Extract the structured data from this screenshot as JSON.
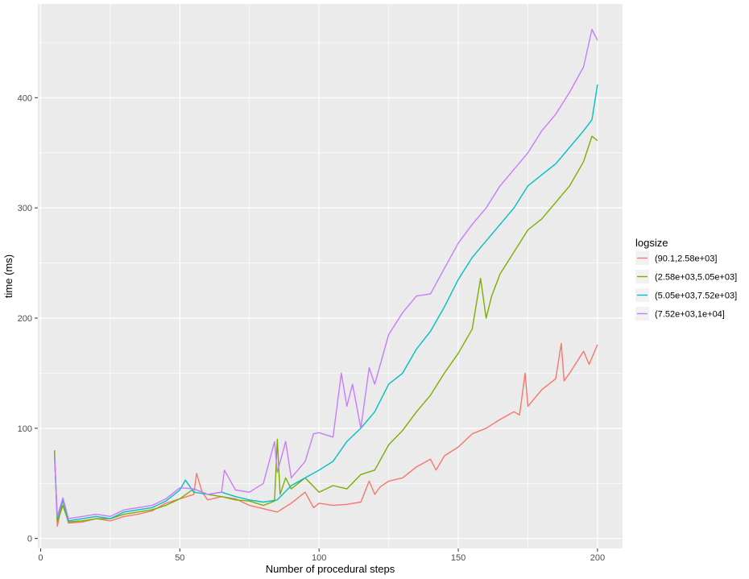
{
  "chart_data": {
    "type": "line",
    "xlabel": "Number of procedural steps",
    "ylabel": "time (ms)",
    "xlim": [
      -1,
      209
    ],
    "ylim": [
      -9,
      485
    ],
    "x_ticks": [
      0,
      50,
      100,
      150,
      200
    ],
    "x_tick_labels": [
      "0",
      "50",
      "100",
      "150",
      "200"
    ],
    "y_ticks": [
      0,
      100,
      200,
      300,
      400
    ],
    "y_tick_labels": [
      "0",
      "100",
      "200",
      "300",
      "400"
    ],
    "grid": true,
    "legend": {
      "title": "logsize",
      "position": "right"
    },
    "series": [
      {
        "name": "(90.1,2.58e+03]",
        "color": "#F8766D",
        "x": [
          5,
          6,
          8,
          10,
          15,
          20,
          25,
          30,
          35,
          40,
          45,
          50,
          55,
          56,
          58,
          60,
          65,
          70,
          75,
          80,
          85,
          90,
          95,
          98,
          100,
          105,
          110,
          115,
          118,
          120,
          122,
          125,
          130,
          135,
          140,
          142,
          145,
          150,
          155,
          160,
          165,
          170,
          172,
          174,
          175,
          180,
          185,
          187,
          188,
          190,
          195,
          197,
          200
        ],
        "y": [
          78,
          11,
          35,
          14,
          15,
          18,
          16,
          20,
          22,
          25,
          32,
          36,
          40,
          59,
          42,
          35,
          38,
          36,
          30,
          27,
          24,
          32,
          42,
          28,
          32,
          30,
          31,
          33,
          52,
          40,
          47,
          52,
          55,
          65,
          72,
          62,
          75,
          83,
          95,
          100,
          108,
          115,
          112,
          150,
          120,
          135,
          145,
          177,
          143,
          150,
          170,
          158,
          176
        ]
      },
      {
        "name": "(2.58e+03,5.05e+03]",
        "color": "#7CAE00",
        "x": [
          5,
          6,
          8,
          10,
          15,
          20,
          25,
          30,
          35,
          40,
          45,
          50,
          55,
          60,
          65,
          70,
          75,
          80,
          84,
          85,
          86,
          88,
          90,
          95,
          100,
          105,
          110,
          115,
          120,
          125,
          130,
          135,
          140,
          145,
          150,
          155,
          158,
          160,
          162,
          165,
          170,
          175,
          180,
          185,
          190,
          195,
          198,
          200
        ],
        "y": [
          80,
          15,
          30,
          15,
          16,
          18,
          18,
          22,
          24,
          26,
          30,
          36,
          45,
          40,
          38,
          35,
          34,
          30,
          34,
          90,
          40,
          55,
          45,
          55,
          42,
          48,
          45,
          58,
          62,
          85,
          98,
          115,
          130,
          150,
          168,
          190,
          236,
          200,
          220,
          240,
          260,
          280,
          290,
          305,
          320,
          342,
          365,
          361
        ]
      },
      {
        "name": "(5.05e+03,7.52e+03]",
        "color": "#00BFC4",
        "x": [
          5,
          6,
          8,
          10,
          15,
          20,
          25,
          30,
          35,
          40,
          45,
          50,
          52,
          55,
          60,
          65,
          70,
          75,
          80,
          85,
          90,
          95,
          100,
          105,
          110,
          115,
          120,
          125,
          130,
          135,
          140,
          145,
          150,
          155,
          160,
          165,
          170,
          175,
          180,
          185,
          190,
          195,
          198,
          200
        ],
        "y": [
          75,
          18,
          35,
          16,
          18,
          20,
          18,
          24,
          26,
          28,
          34,
          44,
          53,
          42,
          40,
          42,
          38,
          35,
          33,
          35,
          48,
          55,
          62,
          70,
          88,
          100,
          115,
          140,
          150,
          172,
          188,
          210,
          235,
          255,
          270,
          285,
          300,
          320,
          330,
          340,
          355,
          370,
          380,
          412
        ]
      },
      {
        "name": "(7.52e+03,1e+04]",
        "color": "#C77CFF",
        "x": [
          5,
          6,
          8,
          10,
          15,
          20,
          25,
          30,
          35,
          40,
          45,
          50,
          55,
          60,
          65,
          66,
          70,
          75,
          80,
          84,
          85,
          88,
          90,
          95,
          98,
          100,
          105,
          108,
          110,
          112,
          115,
          118,
          120,
          125,
          130,
          135,
          140,
          145,
          150,
          155,
          160,
          165,
          170,
          175,
          180,
          185,
          190,
          195,
          198,
          200
        ],
        "y": [
          75,
          20,
          37,
          18,
          20,
          22,
          20,
          26,
          28,
          30,
          36,
          46,
          45,
          40,
          42,
          62,
          44,
          42,
          50,
          88,
          60,
          88,
          55,
          70,
          95,
          96,
          92,
          150,
          120,
          140,
          100,
          155,
          140,
          185,
          205,
          220,
          222,
          245,
          268,
          285,
          300,
          320,
          335,
          350,
          370,
          385,
          405,
          428,
          462,
          452
        ]
      }
    ]
  }
}
